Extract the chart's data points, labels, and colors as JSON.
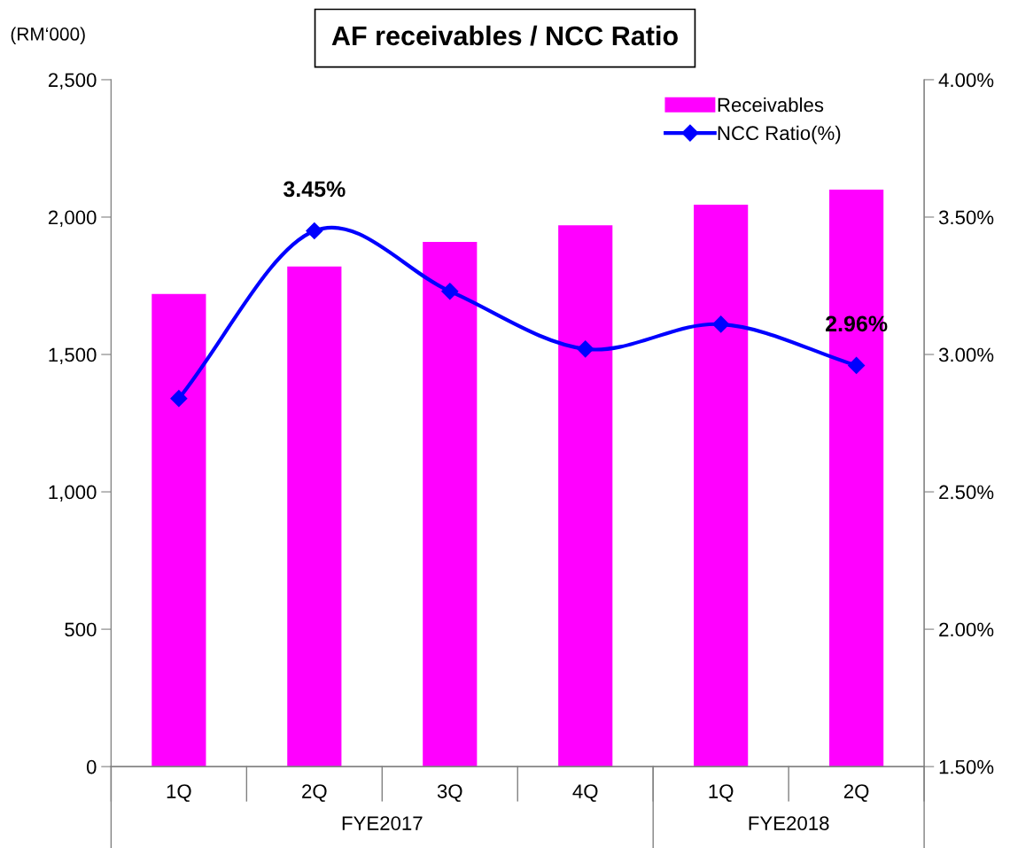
{
  "chart_data": {
    "type": "bar",
    "title": "AF receivables / NCC Ratio",
    "ylabel": "(RM‘000)",
    "categories": [
      "1Q",
      "2Q",
      "3Q",
      "4Q",
      "1Q",
      "2Q"
    ],
    "series": [
      {
        "name": "Receivables",
        "color": "#ff00ff",
        "values": [
          1720,
          1820,
          1910,
          1970,
          2045,
          2100
        ]
      },
      {
        "name": "NCC Ratio(%)",
        "type": "line",
        "axis": "y2",
        "color": "#0000ff",
        "marker": "diamond",
        "values": [
          2.84,
          3.45,
          3.23,
          3.02,
          3.11,
          2.96
        ],
        "value_labels": [
          null,
          "3.45%",
          null,
          null,
          null,
          "2.96%"
        ]
      }
    ],
    "ylim": [
      0,
      2500
    ],
    "yticks": [
      {
        "value": 0,
        "label": "0"
      },
      {
        "value": 500,
        "label": "500"
      },
      {
        "value": 1000,
        "label": "1,000"
      },
      {
        "value": 1500,
        "label": "1,500"
      },
      {
        "value": 2000,
        "label": "2,000"
      },
      {
        "value": 2500,
        "label": "2,500"
      }
    ],
    "y2lim": [
      1.5,
      4.0
    ],
    "y2ticks": [
      {
        "value": 1.5,
        "label": "1.50%"
      },
      {
        "value": 2.0,
        "label": "2.00%"
      },
      {
        "value": 2.5,
        "label": "2.50%"
      },
      {
        "value": 3.0,
        "label": "3.00%"
      },
      {
        "value": 3.5,
        "label": "3.50%"
      },
      {
        "value": 4.0,
        "label": "4.00%"
      }
    ],
    "annotations": [
      "FYE2017",
      "FYE2018"
    ],
    "legend": "top right",
    "grid": false
  }
}
